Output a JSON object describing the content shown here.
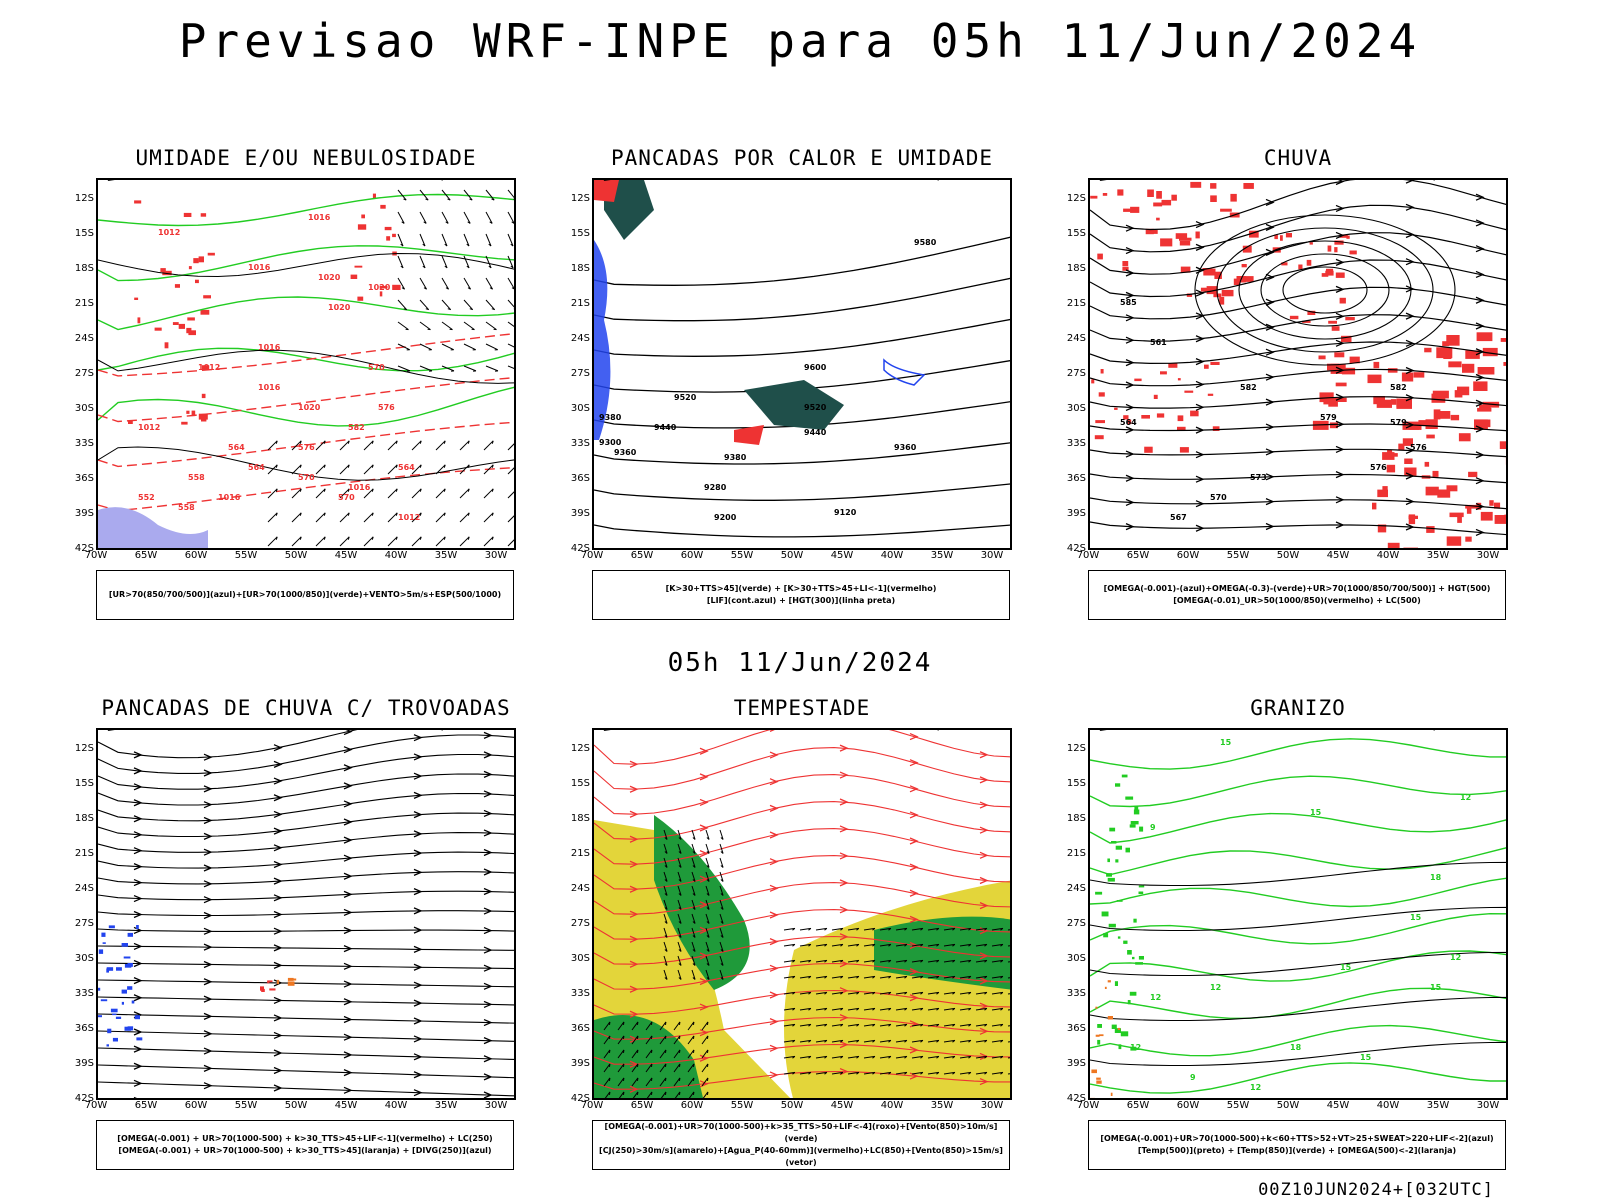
{
  "main_title": "Previsao WRF-INPE  para 05h 11/Jun/2024",
  "mid_title": "05h 11/Jun/2024",
  "footer": "00Z10JUN2024+[032UTC]",
  "axes": {
    "lat_labels": [
      "12S",
      "15S",
      "18S",
      "21S",
      "24S",
      "27S",
      "30S",
      "33S",
      "36S",
      "39S",
      "42S"
    ],
    "lon_labels": [
      "70W",
      "65W",
      "60W",
      "55W",
      "50W",
      "45W",
      "40W",
      "35W",
      "30W"
    ]
  },
  "colors": {
    "red": "#ee3333",
    "green": "#22cc22",
    "blue": "#2244ee",
    "teal": "#1f4f4a",
    "yellow": "#e3d53a",
    "dark_green": "#1f9a3a",
    "lavender": "#aaaaee",
    "orange": "#ee7722"
  },
  "panels": [
    {
      "title": "UMIDADE E/OU NEBULOSIDADE",
      "legend": [
        "[UR>70(850/700/500)](azul)+[UR>70(1000/850)](verde)+VENTO>5m/s+ESP(500/1000)"
      ],
      "contour_labels": [
        "1016",
        "1012",
        "1016",
        "1020",
        "1020",
        "1016",
        "1012",
        "1016",
        "1020",
        "1020",
        "570",
        "576",
        "582",
        "576",
        "564",
        "558",
        "552",
        "558",
        "564",
        "570",
        "570",
        "564",
        "1016",
        "1012",
        "1016",
        "1012"
      ]
    },
    {
      "title": "PANCADAS POR CALOR E UMIDADE",
      "legend": [
        "[K>30+TTS>45](verde) + [K>30+TTS>45+LI<-1](vermelho)",
        "[LIF](cont.azul) + [HGT(300)](linha preta)"
      ],
      "contour_labels": [
        "9580",
        "9600",
        "9520",
        "9520",
        "9440",
        "9440",
        "9360",
        "9380",
        "9360",
        "9280",
        "9200",
        "9120",
        "9380",
        "9300"
      ]
    },
    {
      "title": "CHUVA",
      "legend": [
        "[OMEGA(-0.001)-(azul)+OMEGA(-0.3)-(verde)+UR>70(1000/850/700/500)] + HGT(500)",
        "[OMEGA(-0.01)_UR>50(1000/850)(vermelho) + LC(500)"
      ],
      "contour_labels": [
        "585",
        "582",
        "579",
        "576",
        "573",
        "570",
        "567",
        "564",
        "561",
        "582",
        "579",
        "576"
      ]
    },
    {
      "title": "PANCADAS DE CHUVA C/ TROVOADAS",
      "legend": [
        "[OMEGA(-0.001) + UR>70(1000-500) + k>30_TTS>45+LIF<-1](vermelho) + LC(250)",
        "[OMEGA(-0.001) + UR>70(1000-500) + k>30_TTS>45](laranja) + [DIVG(250)](azul)"
      ],
      "contour_labels": []
    },
    {
      "title": "TEMPESTADE",
      "legend": [
        "[OMEGA(-0.001)+UR>70(1000-500)+k>35_TTS>50+LIF<-4](roxo)+[Vento(850)>10m/s](verde)",
        "[CJ(250)>30m/s](amarelo)+[Agua_P(40-60mm)](vermelho)+LC(850)+[Vento(850)>15m/s](vetor)"
      ],
      "contour_labels": []
    },
    {
      "title": "GRANIZO",
      "legend": [
        "[OMEGA(-0.001)+UR>70(1000-500)+k<60+TTS>52+VT>25+SWEAT>220+LIF<-2](azul)",
        "[Temp(500)](preto) + [Temp(850)](verde) + [OMEGA(500)<-2](laranja)"
      ],
      "contour_labels": [
        "15",
        "12",
        "15",
        "18",
        "15",
        "12",
        "15",
        "12",
        "12",
        "15",
        "18",
        "15",
        "12",
        "9",
        "12",
        "9"
      ]
    }
  ]
}
